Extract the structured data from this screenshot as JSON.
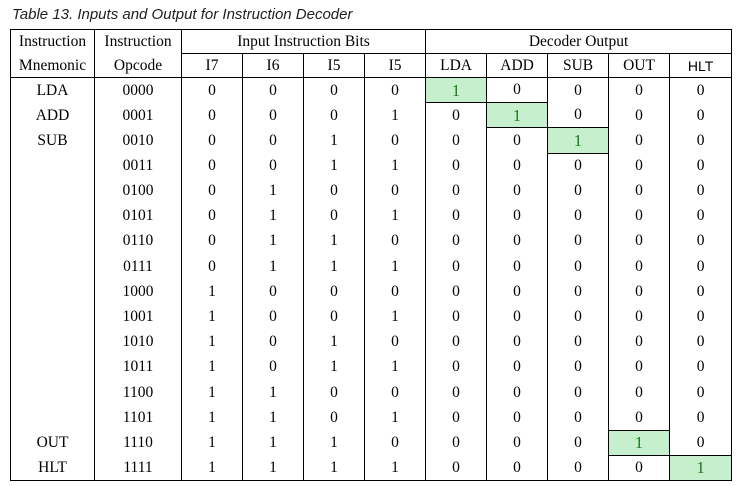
{
  "caption": "Table 13. Inputs and Output for Instruction Decoder",
  "headers": {
    "mnemonic_top": "Instruction",
    "mnemonic_bottom": "Mnemonic",
    "opcode_top": "Instruction",
    "opcode_bottom": "Opcode",
    "input_group": "Input Instruction Bits",
    "output_group": "Decoder Output",
    "input_bits": [
      "I7",
      "I6",
      "I5",
      "I5"
    ],
    "outputs": [
      "LDA",
      "ADD",
      "SUB",
      "OUT",
      "HLT"
    ]
  },
  "rows": [
    {
      "mnemonic": "LDA",
      "opcode": "0000",
      "bits": [
        "0",
        "0",
        "0",
        "0"
      ],
      "outputs": [
        "1",
        "0",
        "0",
        "0",
        "0"
      ],
      "highlight": 0
    },
    {
      "mnemonic": "ADD",
      "opcode": "0001",
      "bits": [
        "0",
        "0",
        "0",
        "1"
      ],
      "outputs": [
        "0",
        "1",
        "0",
        "0",
        "0"
      ],
      "highlight": 1
    },
    {
      "mnemonic": "SUB",
      "opcode": "0010",
      "bits": [
        "0",
        "0",
        "1",
        "0"
      ],
      "outputs": [
        "0",
        "0",
        "1",
        "0",
        "0"
      ],
      "highlight": 2
    },
    {
      "mnemonic": "",
      "opcode": "0011",
      "bits": [
        "0",
        "0",
        "1",
        "1"
      ],
      "outputs": [
        "0",
        "0",
        "0",
        "0",
        "0"
      ],
      "highlight": -1
    },
    {
      "mnemonic": "",
      "opcode": "0100",
      "bits": [
        "0",
        "1",
        "0",
        "0"
      ],
      "outputs": [
        "0",
        "0",
        "0",
        "0",
        "0"
      ],
      "highlight": -1
    },
    {
      "mnemonic": "",
      "opcode": "0101",
      "bits": [
        "0",
        "1",
        "0",
        "1"
      ],
      "outputs": [
        "0",
        "0",
        "0",
        "0",
        "0"
      ],
      "highlight": -1
    },
    {
      "mnemonic": "",
      "opcode": "0110",
      "bits": [
        "0",
        "1",
        "1",
        "0"
      ],
      "outputs": [
        "0",
        "0",
        "0",
        "0",
        "0"
      ],
      "highlight": -1
    },
    {
      "mnemonic": "",
      "opcode": "0111",
      "bits": [
        "0",
        "1",
        "1",
        "1"
      ],
      "outputs": [
        "0",
        "0",
        "0",
        "0",
        "0"
      ],
      "highlight": -1
    },
    {
      "mnemonic": "",
      "opcode": "1000",
      "bits": [
        "1",
        "0",
        "0",
        "0"
      ],
      "outputs": [
        "0",
        "0",
        "0",
        "0",
        "0"
      ],
      "highlight": -1
    },
    {
      "mnemonic": "",
      "opcode": "1001",
      "bits": [
        "1",
        "0",
        "0",
        "1"
      ],
      "outputs": [
        "0",
        "0",
        "0",
        "0",
        "0"
      ],
      "highlight": -1
    },
    {
      "mnemonic": "",
      "opcode": "1010",
      "bits": [
        "1",
        "0",
        "1",
        "0"
      ],
      "outputs": [
        "0",
        "0",
        "0",
        "0",
        "0"
      ],
      "highlight": -1
    },
    {
      "mnemonic": "",
      "opcode": "1011",
      "bits": [
        "1",
        "0",
        "1",
        "1"
      ],
      "outputs": [
        "0",
        "0",
        "0",
        "0",
        "0"
      ],
      "highlight": -1
    },
    {
      "mnemonic": "",
      "opcode": "1100",
      "bits": [
        "1",
        "1",
        "0",
        "0"
      ],
      "outputs": [
        "0",
        "0",
        "0",
        "0",
        "0"
      ],
      "highlight": -1
    },
    {
      "mnemonic": "",
      "opcode": "1101",
      "bits": [
        "1",
        "1",
        "0",
        "1"
      ],
      "outputs": [
        "0",
        "0",
        "0",
        "0",
        "0"
      ],
      "highlight": -1
    },
    {
      "mnemonic": "OUT",
      "opcode": "1110",
      "bits": [
        "1",
        "1",
        "1",
        "0"
      ],
      "outputs": [
        "0",
        "0",
        "0",
        "1",
        "0"
      ],
      "highlight": 3
    },
    {
      "mnemonic": "HLT",
      "opcode": "1111",
      "bits": [
        "1",
        "1",
        "1",
        "1"
      ],
      "outputs": [
        "0",
        "0",
        "0",
        "0",
        "1"
      ],
      "highlight": 4
    }
  ],
  "colors": {
    "highlight_fill": "#c6efce",
    "highlight_text": "#1e7a1e"
  }
}
